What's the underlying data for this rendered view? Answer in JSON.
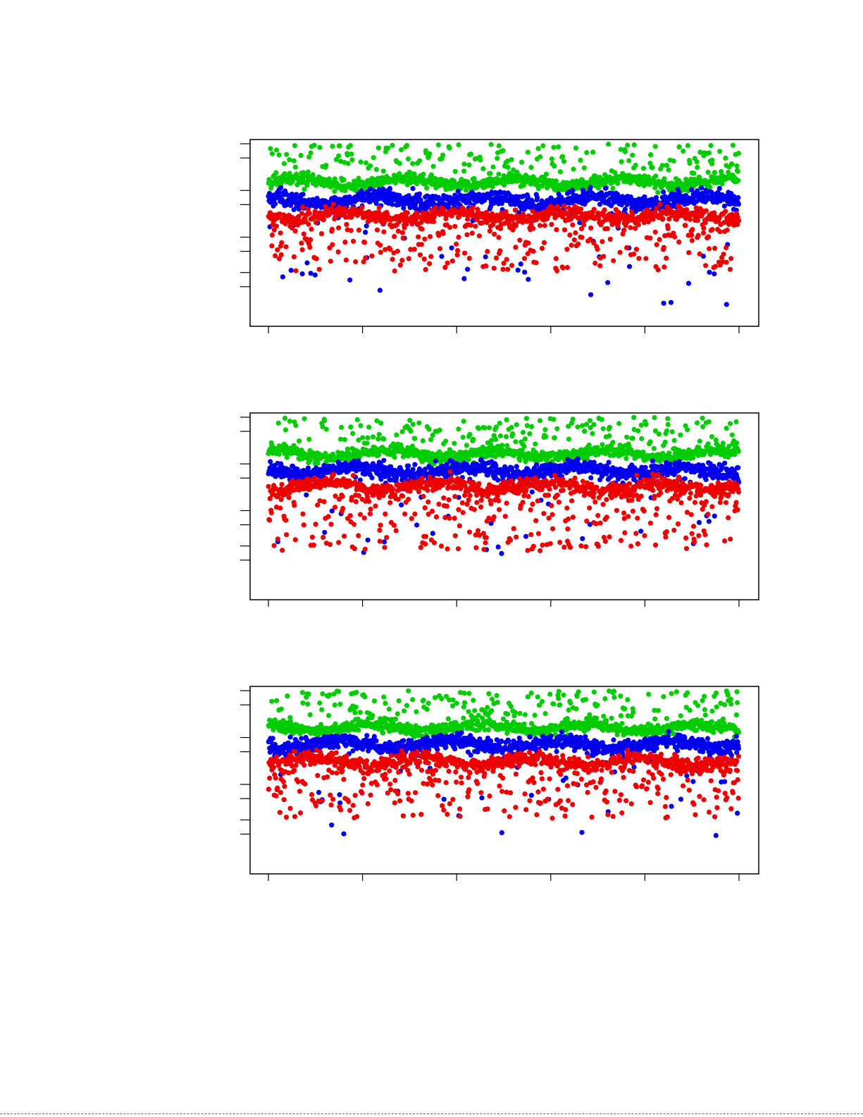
{
  "chart_data": [
    {
      "type": "scatter",
      "title": "",
      "xlabel": "",
      "ylabel": "",
      "x_range": [
        0,
        1000
      ],
      "x_ticks": [
        0,
        200,
        400,
        600,
        800,
        1000
      ],
      "y_range": [
        0,
        13
      ],
      "y_ticks": [
        2.7,
        3.7,
        5.2,
        6.2,
        8.5,
        9.5,
        11.8,
        12.8
      ],
      "series": [
        {
          "color": "#00cc00",
          "center": 10.1,
          "spread": 0.35,
          "outlier_rate": 0.18,
          "outlier_max": 12.8
        },
        {
          "color": "#0000ee",
          "center": 8.8,
          "spread": 0.45,
          "outlier_rate": 0.06,
          "outlier_min": 1.3
        },
        {
          "color": "#ee0000",
          "center": 7.7,
          "spread": 0.4,
          "outlier_rate": 0.28,
          "outlier_min": 3.8
        }
      ],
      "points_per_series": 1000
    },
    {
      "type": "scatter",
      "title": "",
      "xlabel": "",
      "ylabel": "",
      "x_range": [
        0,
        1000
      ],
      "x_ticks": [
        0,
        200,
        400,
        600,
        800,
        1000
      ],
      "y_range": [
        0,
        13
      ],
      "y_ticks": [
        2.7,
        3.7,
        5.2,
        6.2,
        8.5,
        9.5,
        11.8,
        12.8
      ],
      "series": [
        {
          "color": "#00cc00",
          "center": 10.2,
          "spread": 0.35,
          "outlier_rate": 0.18,
          "outlier_max": 12.8
        },
        {
          "color": "#0000ee",
          "center": 9.0,
          "spread": 0.45,
          "outlier_rate": 0.06,
          "outlier_min": 2.8
        },
        {
          "color": "#ee0000",
          "center": 7.9,
          "spread": 0.4,
          "outlier_rate": 0.3,
          "outlier_min": 3.3
        }
      ],
      "points_per_series": 1000
    },
    {
      "type": "scatter",
      "title": "",
      "xlabel": "",
      "ylabel": "",
      "x_range": [
        0,
        1000
      ],
      "x_ticks": [
        0,
        200,
        400,
        600,
        800,
        1000
      ],
      "y_range": [
        0,
        13
      ],
      "y_ticks": [
        2.7,
        3.7,
        5.2,
        6.2,
        8.5,
        9.5,
        11.8,
        12.8
      ],
      "series": [
        {
          "color": "#00cc00",
          "center": 10.2,
          "spread": 0.35,
          "outlier_rate": 0.18,
          "outlier_max": 12.8
        },
        {
          "color": "#0000ee",
          "center": 9.0,
          "spread": 0.45,
          "outlier_rate": 0.06,
          "outlier_min": 2.5
        },
        {
          "color": "#ee0000",
          "center": 7.8,
          "spread": 0.4,
          "outlier_rate": 0.28,
          "outlier_min": 3.8
        }
      ],
      "points_per_series": 1000
    }
  ]
}
